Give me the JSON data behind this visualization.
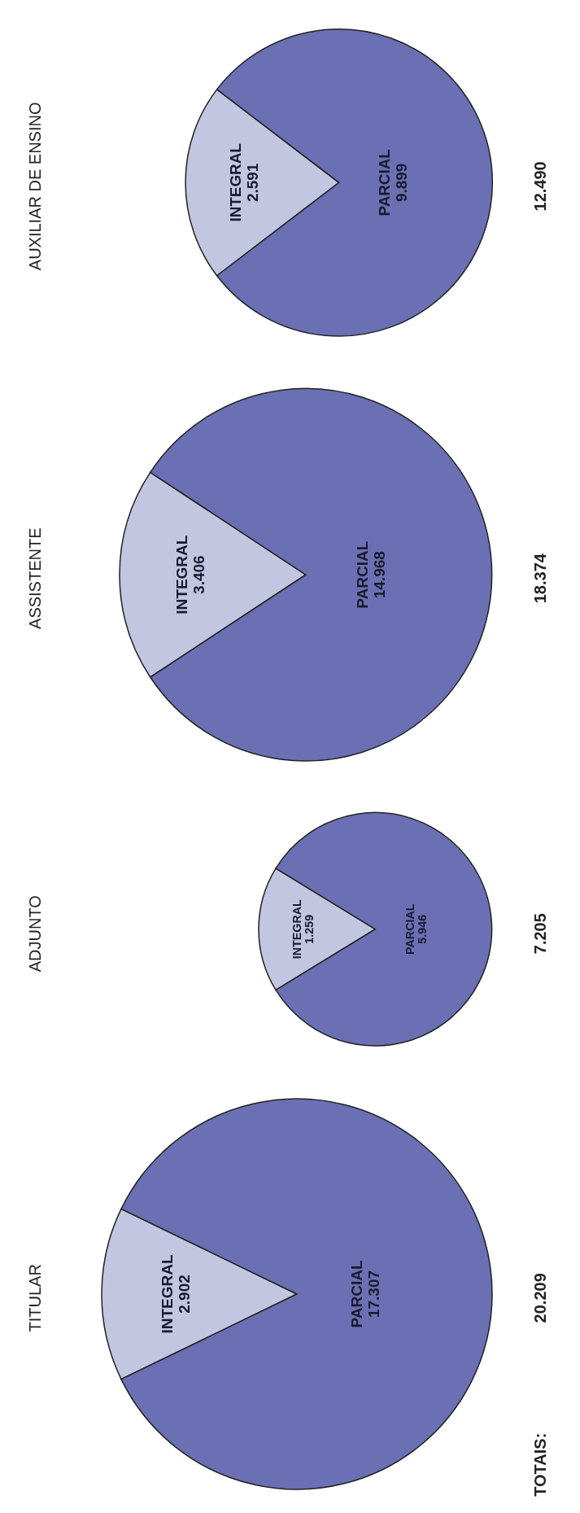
{
  "chart_data": [
    {
      "type": "pie",
      "title": "TITULAR",
      "categories": [
        "INTEGRAL",
        "PARCIAL"
      ],
      "values": [
        2902,
        17307
      ],
      "value_labels": [
        "2.902",
        "17.307"
      ],
      "colors": [
        "#c3c6e0",
        "#6a70b3"
      ],
      "annotations": [
        "TOTAIS:",
        "20.209"
      ]
    },
    {
      "type": "pie",
      "title": "ADJUNTO",
      "categories": [
        "INTEGRAL",
        "PARCIAL"
      ],
      "values": [
        1259,
        5946
      ],
      "value_labels": [
        "1.259",
        "5.946"
      ],
      "colors": [
        "#c3c6e0",
        "#6a70b3"
      ],
      "annotations": [
        "7.205"
      ]
    },
    {
      "type": "pie",
      "title": "ASSISTENTE",
      "categories": [
        "INTEGRAL",
        "PARCIAL"
      ],
      "values": [
        3406,
        14968
      ],
      "value_labels": [
        "3.406",
        "14.968"
      ],
      "colors": [
        "#c3c6e0",
        "#6a70b3"
      ],
      "annotations": [
        "18.374"
      ]
    },
    {
      "type": "pie",
      "title": "AUXILIAR DE ENSINO",
      "categories": [
        "INTEGRAL",
        "PARCIAL"
      ],
      "values": [
        2591,
        9899
      ],
      "value_labels": [
        "2.591",
        "9.899"
      ],
      "colors": [
        "#c3c6e0",
        "#6a70b3"
      ],
      "annotations": [
        "12.490"
      ]
    }
  ]
}
